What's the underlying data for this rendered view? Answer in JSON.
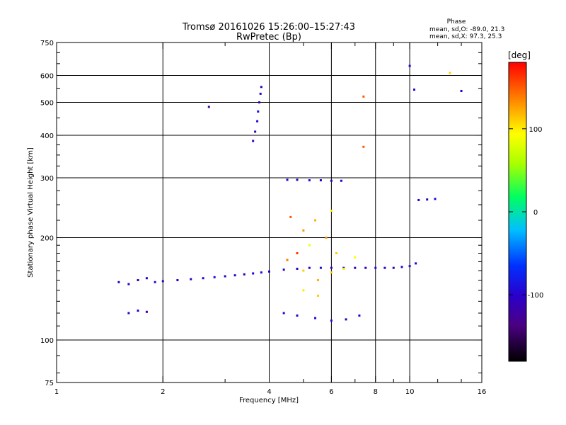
{
  "chart_data": {
    "type": "scatter",
    "title": "Tromsø 20161026 15:26:00–15:27:43",
    "subtitle": "RwPretec (Bp)",
    "xlabel": "Frequency [MHz]",
    "ylabel": "Stationary phase Virtual Height [km]",
    "x_scale": "log",
    "y_scale": "log",
    "xlim": [
      1,
      16
    ],
    "ylim": [
      75,
      750
    ],
    "x_ticks": [
      1,
      2,
      4,
      6,
      8,
      10,
      16
    ],
    "x_tick_labels": [
      "1",
      "2",
      "4",
      "6",
      "8",
      "10",
      "16"
    ],
    "y_ticks": [
      75,
      100,
      200,
      300,
      400,
      500,
      600,
      750
    ],
    "y_tick_labels": [
      "75",
      "100",
      "200",
      "300",
      "400",
      "500",
      "600",
      "750"
    ],
    "grid": true,
    "phase_info": {
      "heading": "Phase",
      "line1": "mean, sd,O: -89.0, 21.3",
      "line2": "mean, sd,X:  97.3, 25.3"
    },
    "colorbar": {
      "label": "[deg]",
      "range": [
        -180,
        180
      ],
      "ticks": [
        100,
        0,
        -100
      ],
      "tick_labels": [
        "100",
        "0",
        "-100"
      ]
    },
    "series": [
      {
        "points": [
          [
            1.5,
            148,
            -110
          ],
          [
            1.6,
            146,
            -100
          ],
          [
            1.7,
            150,
            -120
          ],
          [
            1.8,
            152,
            -100
          ],
          [
            1.9,
            148,
            -90
          ],
          [
            2.0,
            149,
            -110
          ],
          [
            2.2,
            150,
            -100
          ],
          [
            2.4,
            151,
            -110
          ],
          [
            2.6,
            152,
            -100
          ],
          [
            2.8,
            153,
            -90
          ],
          [
            3.0,
            154,
            -110
          ],
          [
            3.2,
            155,
            -100
          ],
          [
            3.4,
            156,
            -110
          ],
          [
            3.6,
            157,
            -100
          ],
          [
            3.8,
            158,
            -90
          ],
          [
            4.0,
            159,
            -110
          ],
          [
            4.4,
            161,
            -100
          ],
          [
            4.8,
            162,
            -110
          ],
          [
            5.2,
            163,
            -100
          ],
          [
            5.6,
            163,
            -90
          ],
          [
            6.0,
            163,
            -110
          ],
          [
            6.5,
            163,
            -100
          ],
          [
            7.0,
            163,
            -110
          ],
          [
            7.5,
            163,
            -100
          ],
          [
            8.0,
            163,
            -90
          ],
          [
            8.5,
            163,
            -100
          ],
          [
            9.0,
            163,
            -110
          ],
          [
            9.5,
            164,
            -100
          ],
          [
            10.0,
            165,
            -90
          ],
          [
            10.4,
            168,
            -100
          ],
          [
            1.6,
            120,
            -110
          ],
          [
            1.7,
            122,
            -100
          ],
          [
            1.8,
            121,
            -120
          ],
          [
            3.6,
            385,
            -100
          ],
          [
            3.65,
            410,
            -110
          ],
          [
            3.7,
            440,
            -100
          ],
          [
            3.72,
            470,
            -90
          ],
          [
            3.75,
            500,
            -110
          ],
          [
            3.78,
            530,
            -100
          ],
          [
            3.8,
            555,
            -110
          ],
          [
            2.7,
            485,
            -120
          ],
          [
            4.5,
            296,
            -100
          ],
          [
            4.8,
            296,
            -110
          ],
          [
            5.2,
            295,
            -90
          ],
          [
            5.6,
            295,
            -100
          ],
          [
            6.0,
            294,
            -110
          ],
          [
            6.4,
            294,
            -100
          ],
          [
            4.4,
            120,
            -100
          ],
          [
            4.8,
            118,
            -110
          ],
          [
            5.4,
            116,
            -100
          ],
          [
            6.0,
            114,
            -90
          ],
          [
            6.6,
            115,
            -110
          ],
          [
            7.2,
            118,
            -100
          ],
          [
            10.6,
            258,
            -100
          ],
          [
            11.2,
            259,
            -110
          ],
          [
            11.8,
            260,
            -100
          ],
          [
            7.4,
            520,
            150
          ],
          [
            7.4,
            370,
            150
          ],
          [
            13.0,
            610,
            110
          ],
          [
            14.0,
            540,
            -100
          ],
          [
            10.0,
            640,
            -100
          ],
          [
            10.3,
            545,
            -100
          ],
          [
            5.0,
            160,
            110
          ],
          [
            5.5,
            150,
            120
          ],
          [
            5.0,
            140,
            100
          ],
          [
            5.5,
            135,
            110
          ],
          [
            6.0,
            158,
            110
          ],
          [
            6.5,
            162,
            100
          ],
          [
            5.0,
            210,
            130
          ],
          [
            5.4,
            225,
            120
          ],
          [
            6.0,
            240,
            100
          ],
          [
            5.2,
            190,
            90
          ],
          [
            4.5,
            172,
            140
          ],
          [
            4.8,
            180,
            160
          ],
          [
            4.6,
            230,
            150
          ],
          [
            5.8,
            200,
            130
          ],
          [
            6.2,
            180,
            110
          ],
          [
            7.0,
            175,
            95
          ]
        ]
      }
    ]
  }
}
